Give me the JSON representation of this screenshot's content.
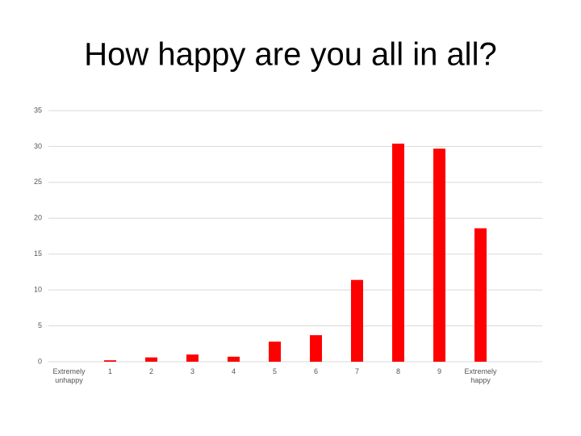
{
  "chart_data": {
    "type": "bar",
    "title": "How happy are you all in all?",
    "categories": [
      "Extremely unhappy",
      "1",
      "2",
      "3",
      "4",
      "5",
      "6",
      "7",
      "8",
      "9",
      "Extremely happy"
    ],
    "values": [
      0,
      0.2,
      0.6,
      1.0,
      0.7,
      2.8,
      3.7,
      11.4,
      30.4,
      29.7,
      18.6
    ],
    "color": "#ff0000",
    "ylim": [
      0,
      35
    ],
    "yticks": [
      0,
      5,
      10,
      15,
      20,
      25,
      30,
      35
    ],
    "grid": true
  }
}
